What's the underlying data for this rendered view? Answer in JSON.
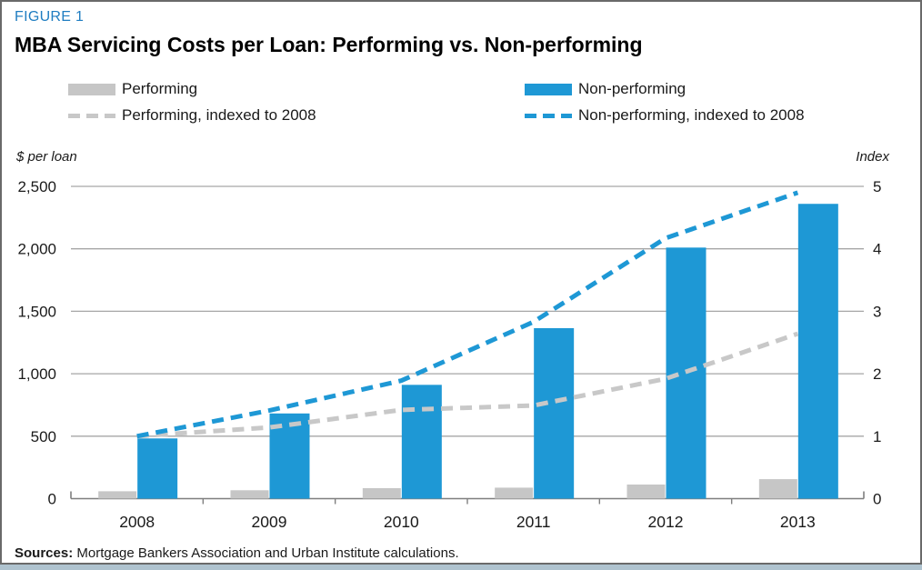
{
  "figure_label": "FIGURE 1",
  "title": "MBA Servicing Costs per Loan: Performing vs. Non-performing",
  "legend": [
    {
      "label": "Performing",
      "type": "bar",
      "color": "#c6c6c6"
    },
    {
      "label": "Non-performing",
      "type": "bar",
      "color": "#1e98d5"
    },
    {
      "label": "Performing, indexed to 2008",
      "type": "dash",
      "color": "#c8c8c8"
    },
    {
      "label": "Non-performing, indexed to 2008",
      "type": "dash",
      "color": "#1e98d5"
    }
  ],
  "left_axis_unit": "$ per loan",
  "right_axis_unit": "Index",
  "sources": {
    "prefix": "Sources:",
    "text": " Mortgage Bankers Association and Urban Institute calculations."
  },
  "colors": {
    "blue": "#1e98d5",
    "bar_gray": "#c6c6c6",
    "dash_gray": "#c8c8c8",
    "figure_label_blue": "#1f7dc1",
    "gridline": "#a6a6a6",
    "axis": "#7f7f7f",
    "text": "#1a1a1a",
    "border": "#6a6a6a",
    "bottom_strip": "#afc3cf"
  },
  "chart_data": {
    "type": "bar",
    "title": "MBA Servicing Costs per Loan: Performing vs. Non-performing",
    "categories": [
      "2008",
      "2009",
      "2010",
      "2011",
      "2012",
      "2013"
    ],
    "series": [
      {
        "name": "Performing",
        "kind": "bar",
        "axis": "left",
        "color": "#c6c6c6",
        "values": [
          59,
          67,
          84,
          88,
          113,
          156
        ]
      },
      {
        "name": "Non-performing",
        "kind": "bar",
        "axis": "left",
        "color": "#1e98d5",
        "values": [
          482,
          682,
          911,
          1365,
          2010,
          2360
        ]
      },
      {
        "name": "Performing, indexed to 2008",
        "kind": "dashed-line",
        "axis": "right",
        "color": "#c8c8c8",
        "values": [
          1.0,
          1.14,
          1.42,
          1.49,
          1.92,
          2.64
        ]
      },
      {
        "name": "Non-performing, indexed to 2008",
        "kind": "dashed-line",
        "axis": "right",
        "color": "#1e98d5",
        "values": [
          1.0,
          1.41,
          1.89,
          2.83,
          4.17,
          4.9
        ]
      }
    ],
    "left_axis": {
      "label": "$ per loan",
      "min": 0,
      "max": 2500,
      "tick_step": 500,
      "tick_labels": [
        "0",
        "500",
        "1,000",
        "1,500",
        "2,000",
        "2,500"
      ]
    },
    "right_axis": {
      "label": "Index",
      "min": 0,
      "max": 5,
      "tick_step": 1,
      "tick_labels": [
        "0",
        "1",
        "2",
        "3",
        "4",
        "5"
      ]
    },
    "grid": true,
    "legend_position": "top"
  }
}
